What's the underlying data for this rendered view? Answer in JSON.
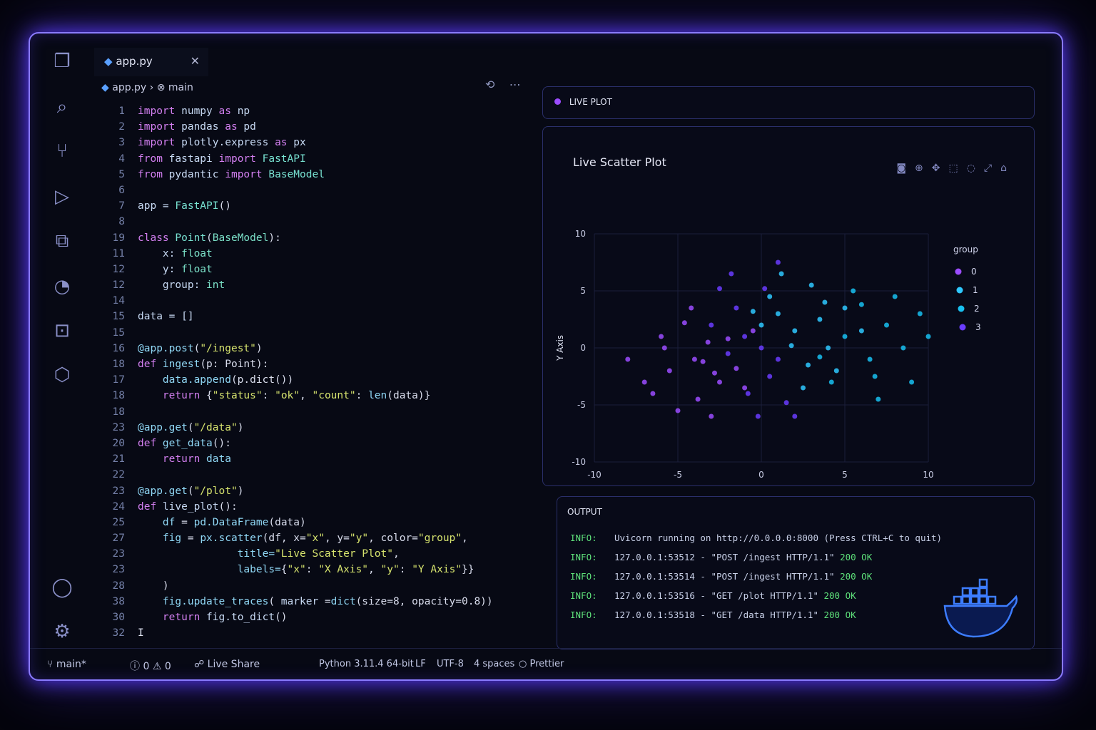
{
  "tab": {
    "file": "app.py",
    "icon": "python-icon"
  },
  "breadcrumb": {
    "file": "app.py",
    "symbol": "main"
  },
  "activity_icons": [
    "files-icon",
    "search-icon",
    "source-control-icon",
    "run-debug-icon",
    "extensions-icon",
    "remote-icon",
    "testing-icon",
    "docker-icon",
    "account-icon",
    "settings-icon"
  ],
  "code": [
    [
      "1",
      [
        [
          "k",
          "import"
        ],
        [
          "m",
          " numpy "
        ],
        [
          "k",
          "as"
        ],
        [
          "m",
          " np"
        ]
      ]
    ],
    [
      "2",
      [
        [
          "k",
          "import"
        ],
        [
          "m",
          " pandas "
        ],
        [
          "k",
          "as"
        ],
        [
          "m",
          " pd"
        ]
      ]
    ],
    [
      "3",
      [
        [
          "k",
          "import"
        ],
        [
          "m",
          " plotly.express "
        ],
        [
          "k",
          "as"
        ],
        [
          "m",
          " px"
        ]
      ]
    ],
    [
      "4",
      [
        [
          "k",
          "from"
        ],
        [
          "m",
          " fastapi "
        ],
        [
          "k",
          "import"
        ],
        [
          "c",
          " FastAPI"
        ]
      ]
    ],
    [
      "5",
      [
        [
          "k",
          "from"
        ],
        [
          "m",
          " pydantic "
        ],
        [
          "k",
          "import"
        ],
        [
          "c",
          " BaseModel"
        ]
      ]
    ],
    [
      "6",
      []
    ],
    [
      "7",
      [
        [
          "m",
          "app = "
        ],
        [
          "c",
          "FastAPI"
        ],
        [
          "p",
          "()"
        ]
      ]
    ],
    [
      "8",
      []
    ],
    [
      "19",
      [
        [
          "k",
          "class"
        ],
        [
          "c",
          " Point"
        ],
        [
          "p",
          "("
        ],
        [
          "t",
          "BaseModel"
        ],
        [
          "p",
          "):"
        ]
      ]
    ],
    [
      "11",
      [
        [
          "m",
          "    x: "
        ],
        [
          "t",
          "float"
        ]
      ]
    ],
    [
      "12",
      [
        [
          "m",
          "    y: "
        ],
        [
          "t",
          "float"
        ]
      ]
    ],
    [
      "12",
      [
        [
          "m",
          "    group: "
        ],
        [
          "t",
          "int"
        ]
      ]
    ],
    [
      "14",
      []
    ],
    [
      "15",
      [
        [
          "m",
          "data = []"
        ]
      ]
    ],
    [
      "15",
      []
    ],
    [
      "16",
      [
        [
          "f",
          "@app.post"
        ],
        [
          "p",
          "("
        ],
        [
          "s",
          "\"/ingest\""
        ],
        [
          "p",
          ")"
        ]
      ]
    ],
    [
      "18",
      [
        [
          "k",
          "def"
        ],
        [
          "f",
          " ingest"
        ],
        [
          "p",
          "(p: Point):"
        ]
      ]
    ],
    [
      "17",
      [
        [
          "f",
          "    data.append"
        ],
        [
          "p",
          "(p.dict())"
        ]
      ]
    ],
    [
      "18",
      [
        [
          "k",
          "    return"
        ],
        [
          "p",
          " {"
        ],
        [
          "s",
          "\"status\""
        ],
        [
          "p",
          ": "
        ],
        [
          "s",
          "\"ok\""
        ],
        [
          "p",
          ", "
        ],
        [
          "s",
          "\"count\""
        ],
        [
          "p",
          ": "
        ],
        [
          "f",
          "len"
        ],
        [
          "p",
          "(data)}"
        ]
      ]
    ],
    [
      "18",
      []
    ],
    [
      "23",
      [
        [
          "f",
          "@app.get"
        ],
        [
          "p",
          "("
        ],
        [
          "s",
          "\"/data\""
        ],
        [
          "p",
          ")"
        ]
      ]
    ],
    [
      "20",
      [
        [
          "k",
          "def"
        ],
        [
          "f",
          " get_data"
        ],
        [
          "p",
          "():"
        ]
      ]
    ],
    [
      "21",
      [
        [
          "k",
          "    return"
        ],
        [
          "f",
          " data"
        ]
      ]
    ],
    [
      "22",
      []
    ],
    [
      "23",
      [
        [
          "f",
          "@app.get"
        ],
        [
          "p",
          "("
        ],
        [
          "s",
          "\"/plot\""
        ],
        [
          "p",
          ")"
        ]
      ]
    ],
    [
      "24",
      [
        [
          "k",
          "def"
        ],
        [
          "m",
          " live_plot"
        ],
        [
          "p",
          "():"
        ]
      ]
    ],
    [
      "25",
      [
        [
          "f",
          "    df"
        ],
        [
          "p",
          " = "
        ],
        [
          "f",
          "pd.DataFrame"
        ],
        [
          "p",
          "(data)"
        ]
      ]
    ],
    [
      "27",
      [
        [
          "f",
          "    fig"
        ],
        [
          "p",
          " = "
        ],
        [
          "f",
          "px.scatter"
        ],
        [
          "p",
          "(df, x="
        ],
        [
          "s",
          "\"x\""
        ],
        [
          "p",
          ", y="
        ],
        [
          "s",
          "\"y\""
        ],
        [
          "p",
          ", color="
        ],
        [
          "s",
          "\"group\""
        ],
        [
          "p",
          ","
        ]
      ]
    ],
    [
      "23",
      [
        [
          "f",
          "                title="
        ],
        [
          "s",
          "\"Live Scatter Plot\""
        ],
        [
          "p",
          ","
        ]
      ]
    ],
    [
      "23",
      [
        [
          "f",
          "                labels="
        ],
        [
          "p",
          "{"
        ],
        [
          "s",
          "\"x\""
        ],
        [
          "p",
          ": "
        ],
        [
          "s",
          "\"X Axis\""
        ],
        [
          "p",
          ", "
        ],
        [
          "s",
          "\"y\""
        ],
        [
          "p",
          ": "
        ],
        [
          "s",
          "\"Y Axis\""
        ],
        [
          "p",
          "}}"
        ]
      ]
    ],
    [
      "28",
      [
        [
          "p",
          "    )"
        ]
      ]
    ],
    [
      "38",
      [
        [
          "f",
          "    fig.update_traces"
        ],
        [
          "p",
          "( "
        ],
        [
          "m",
          "marker"
        ],
        [
          "p",
          " ="
        ],
        [
          "f",
          "dict"
        ],
        [
          "p",
          "(size=8, opacity=0.8))"
        ]
      ]
    ],
    [
      "30",
      [
        [
          "k",
          "    return"
        ],
        [
          "m",
          " fig.to_dict"
        ],
        [
          "p",
          "()"
        ]
      ]
    ],
    [
      "32",
      []
    ]
  ],
  "live_plot": {
    "header": "LIVE PLOT",
    "title": "Live Scatter Plot",
    "toolbar": [
      "camera-icon",
      "zoom-icon",
      "pan-icon",
      "box-select-icon",
      "lasso-icon",
      "autoscale-icon",
      "reset-axes-icon"
    ]
  },
  "chart_data": {
    "type": "scatter",
    "title": "Live Scatter Plot",
    "xlabel": "X Axis",
    "ylabel": "Y Axis",
    "xlim": [
      -10,
      10
    ],
    "ylim": [
      -10,
      10
    ],
    "xticks": [
      "-10",
      "-5",
      "0",
      "5",
      "10"
    ],
    "yticks": [
      "10",
      "5",
      "0",
      "-5",
      "-10"
    ],
    "grid": true,
    "legend": {
      "title": "group",
      "entries": [
        "0",
        "1",
        "2",
        "3"
      ],
      "placement": "right"
    },
    "colors": {
      "0": "#9b4cff",
      "1": "#2ec8ff",
      "2": "#18c0f0",
      "3": "#6a3cff"
    },
    "points": [
      [
        -4,
        -1,
        0
      ],
      [
        -3.2,
        0.5,
        0
      ],
      [
        -5.5,
        -2,
        0
      ],
      [
        -2.5,
        -3,
        0
      ],
      [
        -6,
        1,
        0
      ],
      [
        -3.8,
        -4.5,
        0
      ],
      [
        -1.5,
        -1.8,
        0
      ],
      [
        -7,
        -3,
        0
      ],
      [
        -4.6,
        2.2,
        0
      ],
      [
        -2,
        0.8,
        0
      ],
      [
        -8,
        -1,
        0
      ],
      [
        -5,
        -5.5,
        0
      ],
      [
        -3,
        -6,
        0
      ],
      [
        -6.5,
        -4,
        0
      ],
      [
        -1,
        -3.5,
        0
      ],
      [
        -4.2,
        3.5,
        0
      ],
      [
        -2.8,
        -2.2,
        0
      ],
      [
        -5.8,
        0,
        0
      ],
      [
        -3.5,
        -1.2,
        0
      ],
      [
        -0.5,
        1.5,
        0
      ],
      [
        2,
        1.5,
        1
      ],
      [
        3.5,
        2.5,
        1
      ],
      [
        1,
        3,
        1
      ],
      [
        4,
        0,
        1
      ],
      [
        2.8,
        -1.5,
        1
      ],
      [
        0.5,
        4.5,
        1
      ],
      [
        5,
        3.5,
        1
      ],
      [
        1.8,
        0.2,
        1
      ],
      [
        3,
        5.5,
        1
      ],
      [
        6,
        1.5,
        1
      ],
      [
        0,
        2,
        1
      ],
      [
        2.5,
        -3.5,
        1
      ],
      [
        4.5,
        -2,
        1
      ],
      [
        1.2,
        6.5,
        1
      ],
      [
        3.8,
        4,
        1
      ],
      [
        -0.5,
        3.2,
        1
      ],
      [
        5,
        1,
        2
      ],
      [
        6.5,
        -1,
        2
      ],
      [
        7.5,
        2,
        2
      ],
      [
        4.2,
        -3,
        2
      ],
      [
        8.5,
        0,
        2
      ],
      [
        6,
        3.8,
        2
      ],
      [
        9,
        -3,
        2
      ],
      [
        7,
        -4.5,
        2
      ],
      [
        5.5,
        5,
        2
      ],
      [
        10,
        1,
        2
      ],
      [
        8,
        4.5,
        2
      ],
      [
        3.5,
        -0.8,
        2
      ],
      [
        9.5,
        3,
        2
      ],
      [
        6.8,
        -2.5,
        2
      ],
      [
        0,
        0,
        3
      ],
      [
        -1,
        1,
        3
      ],
      [
        1,
        -1,
        3
      ],
      [
        -2,
        -0.5,
        3
      ],
      [
        0.5,
        -2.5,
        3
      ],
      [
        -0.8,
        -4,
        3
      ],
      [
        1.5,
        -4.8,
        3
      ],
      [
        -1.5,
        3.5,
        3
      ],
      [
        0.2,
        5.2,
        3
      ],
      [
        -3,
        2,
        3
      ],
      [
        -2.5,
        5.2,
        3
      ],
      [
        1,
        7.5,
        3
      ],
      [
        -0.2,
        -6,
        3
      ],
      [
        2,
        -6,
        3
      ],
      [
        -1.8,
        6.5,
        3
      ]
    ]
  },
  "output": {
    "title": "OUTPUT",
    "lines": [
      {
        "level": "INFO:",
        "text": "Uvicorn running on http://0.0.0.0:8000 (Press CTRL+C to quit)",
        "status": ""
      },
      {
        "level": "INFO:",
        "text": "127.0.0.1:53512 - \"POST /ingest HTTP/1.1\"",
        "status": "200 OK"
      },
      {
        "level": "INFO:",
        "text": "127.0.0.1:53514 - \"POST /ingest HTTP/1.1\"",
        "status": "200 OK"
      },
      {
        "level": "INFO:",
        "text": "127.0.0.1:53516 - \"GET /plot HTTP/1.1\"",
        "status": "200 OK"
      },
      {
        "level": "INFO:",
        "text": "127.0.0.1:53518 - \"GET /data HTTP/1.1\"",
        "status": "200 OK"
      }
    ]
  },
  "status": {
    "branch": "main*",
    "errors": "0",
    "warnings": "0",
    "live_share": "Live Share",
    "python": "Python 3.11.4 64-bit",
    "eol": "LF",
    "encoding": "UTF-8",
    "indent": "4 spaces",
    "formatter": "Prettier"
  }
}
